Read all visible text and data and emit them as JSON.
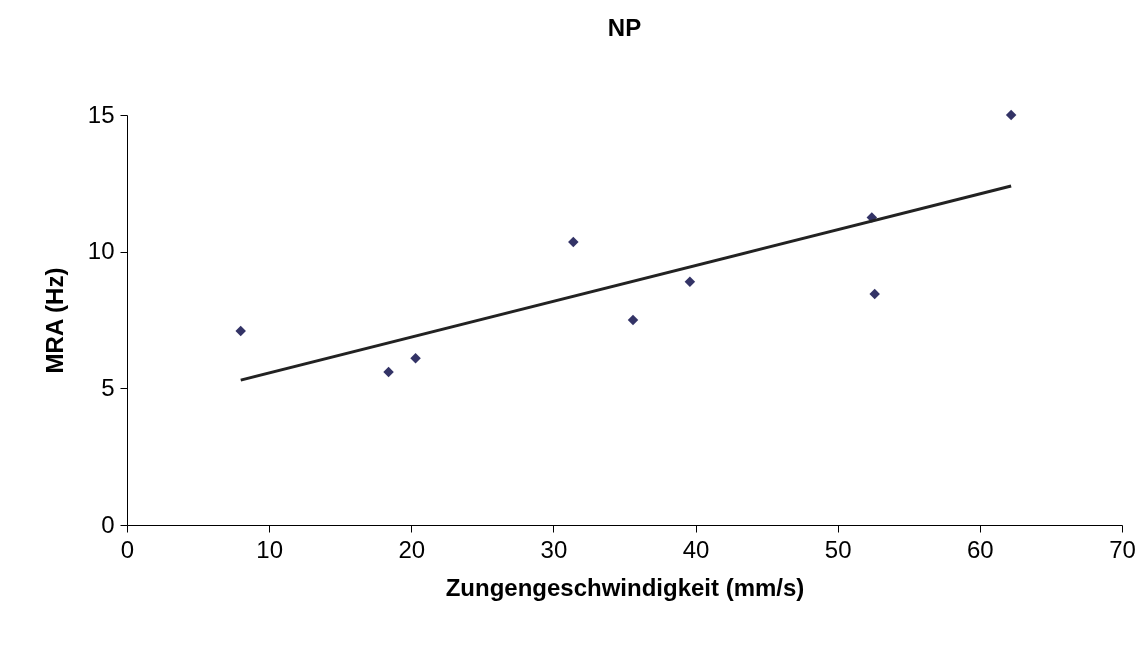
{
  "chart_data": {
    "type": "scatter",
    "title": "NP",
    "xlabel": "Zungengeschwindigkeit (mm/s)",
    "ylabel": "MRA (Hz)",
    "xlim": [
      0,
      70
    ],
    "xticks": [
      0,
      10,
      20,
      30,
      40,
      50,
      60,
      70
    ],
    "ylim": [
      0,
      15
    ],
    "yticks": [
      0,
      5,
      10,
      15
    ],
    "grid": false,
    "series": [
      {
        "color": "#333366",
        "marker": "diamond",
        "x": [
          8.0,
          18.4,
          20.3,
          31.4,
          35.6,
          39.6,
          52.4,
          52.6,
          62.2
        ],
        "values": [
          7.1,
          5.6,
          6.1,
          10.35,
          7.5,
          8.9,
          11.25,
          8.45,
          15.0
        ]
      },
      {
        "type": "line",
        "color": "#222222",
        "line_style": "solid",
        "marker": "none",
        "x": [
          8.0,
          62.2
        ],
        "values": [
          5.3,
          12.4
        ]
      }
    ]
  }
}
